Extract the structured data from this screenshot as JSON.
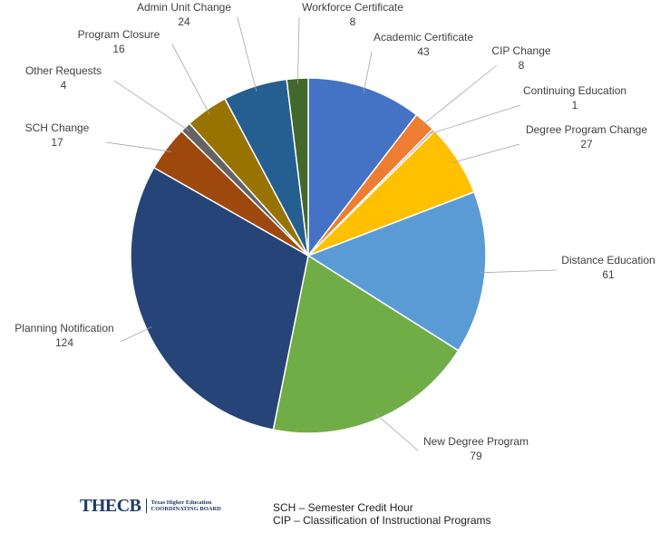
{
  "chart_data": {
    "type": "pie",
    "title": "",
    "slices": [
      {
        "name": "Academic Certificate",
        "value": 43,
        "color": "#4472C4"
      },
      {
        "name": "CIP Change",
        "value": 8,
        "color": "#ED7D31"
      },
      {
        "name": "Continuing Education",
        "value": 1,
        "color": "#A5A5A5"
      },
      {
        "name": "Degree Program Change",
        "value": 27,
        "color": "#FFC000"
      },
      {
        "name": "Distance Education",
        "value": 61,
        "color": "#5B9BD5"
      },
      {
        "name": "New Degree Program",
        "value": 79,
        "color": "#70AD47"
      },
      {
        "name": "Planning Notification",
        "value": 124,
        "color": "#264478"
      },
      {
        "name": "SCH Change",
        "value": 17,
        "color": "#9E480E"
      },
      {
        "name": "Other Requests",
        "value": 4,
        "color": "#636363"
      },
      {
        "name": "Program Closure",
        "value": 16,
        "color": "#997300"
      },
      {
        "name": "Admin Unit Change",
        "value": 24,
        "color": "#255E91"
      },
      {
        "name": "Workforce Certificate",
        "value": 8,
        "color": "#43682B"
      }
    ],
    "data_labels": "category name and value",
    "legend": "none"
  },
  "logo": {
    "text": "THECB",
    "subtitle_line1": "Texas Higher Education",
    "subtitle_line2": "COORDINATING BOARD"
  },
  "notes": [
    "SCH – Semester Credit Hour",
    "CIP – Classification of Instructional Programs"
  ]
}
